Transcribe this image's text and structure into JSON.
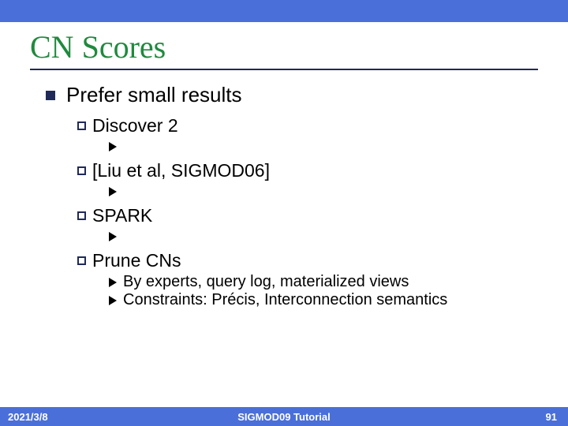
{
  "title": "CN Scores",
  "main_bullet": "Prefer small results",
  "items": {
    "discover": "Discover 2",
    "liu": "[Liu et al, SIGMOD06]",
    "spark": "SPARK",
    "prune": "Prune CNs",
    "prune_sub1": "By experts, query log, materialized views",
    "prune_sub2": "Constraints: Précis, Interconnection semantics"
  },
  "footer": {
    "date": "2021/3/8",
    "center": "SIGMOD09 Tutorial",
    "page": "91"
  },
  "colors": {
    "bar": "#4a6fd8",
    "title": "#1f8a3d",
    "accent": "#1f2a5a"
  }
}
